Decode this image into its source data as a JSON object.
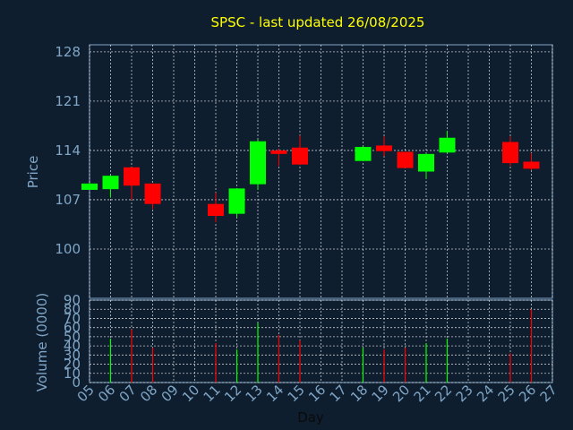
{
  "chart_data": [
    {
      "type": "candlestick",
      "title": "SPSC - last updated 26/08/2025",
      "xlabel": "",
      "ylabel": "Price",
      "ylim": [
        93,
        129
      ],
      "yticks": [
        100,
        107,
        114,
        121,
        128
      ],
      "grid": true,
      "colors": {
        "up": "#00ff00",
        "down": "#ff0000",
        "title": "#ffff00",
        "axis": "#7fa6c6",
        "background": "#0f1e2f"
      },
      "candles": [
        {
          "day": "05",
          "open": 108.4,
          "high": 109.4,
          "low": 108.4,
          "close": 109.3
        },
        {
          "day": "06",
          "open": 108.5,
          "high": 110.5,
          "low": 107.3,
          "close": 110.4
        },
        {
          "day": "07",
          "open": 111.6,
          "high": 111.6,
          "low": 107.0,
          "close": 109.0
        },
        {
          "day": "08",
          "open": 109.3,
          "high": 109.3,
          "low": 105.7,
          "close": 106.4
        },
        {
          "day": "11",
          "open": 106.4,
          "high": 108.0,
          "low": 103.8,
          "close": 104.7
        },
        {
          "day": "12",
          "open": 105.0,
          "high": 108.6,
          "low": 104.5,
          "close": 108.6
        },
        {
          "day": "13",
          "open": 109.2,
          "high": 115.5,
          "low": 108.4,
          "close": 115.3
        },
        {
          "day": "14",
          "open": 114.0,
          "high": 114.2,
          "low": 111.8,
          "close": 113.5
        },
        {
          "day": "15",
          "open": 114.4,
          "high": 116.1,
          "low": 111.9,
          "close": 112.0
        },
        {
          "day": "18",
          "open": 112.5,
          "high": 114.6,
          "low": 112.5,
          "close": 114.5
        },
        {
          "day": "19",
          "open": 114.7,
          "high": 116.0,
          "low": 113.2,
          "close": 113.9
        },
        {
          "day": "20",
          "open": 113.8,
          "high": 113.8,
          "low": 111.5,
          "close": 111.5
        },
        {
          "day": "21",
          "open": 111.0,
          "high": 113.6,
          "low": 110.0,
          "close": 113.5
        },
        {
          "day": "22",
          "open": 113.7,
          "high": 116.8,
          "low": 113.6,
          "close": 115.8
        },
        {
          "day": "25",
          "open": 115.2,
          "high": 116.0,
          "low": 111.8,
          "close": 112.2
        },
        {
          "day": "26",
          "open": 112.4,
          "high": 113.6,
          "low": 111.2,
          "close": 111.4
        }
      ]
    },
    {
      "type": "bar",
      "xlabel": "Day",
      "ylabel": "Volume (0000)",
      "ylim": [
        0,
        90
      ],
      "yticks": [
        0,
        10,
        20,
        30,
        40,
        50,
        60,
        70,
        80,
        90
      ],
      "grid": true,
      "categories": [
        "05",
        "06",
        "07",
        "08",
        "09",
        "10",
        "11",
        "12",
        "13",
        "14",
        "15",
        "16",
        "17",
        "18",
        "19",
        "20",
        "21",
        "22",
        "23",
        "24",
        "25",
        "26",
        "27"
      ],
      "bars": [
        {
          "day": "06",
          "value": 48,
          "direction": "up"
        },
        {
          "day": "07",
          "value": 58,
          "direction": "down"
        },
        {
          "day": "08",
          "value": 38,
          "direction": "down"
        },
        {
          "day": "11",
          "value": 43,
          "direction": "down"
        },
        {
          "day": "12",
          "value": 36,
          "direction": "up"
        },
        {
          "day": "13",
          "value": 65,
          "direction": "up"
        },
        {
          "day": "14",
          "value": 52,
          "direction": "down"
        },
        {
          "day": "15",
          "value": 46,
          "direction": "down"
        },
        {
          "day": "18",
          "value": 38,
          "direction": "up"
        },
        {
          "day": "19",
          "value": 36,
          "direction": "down"
        },
        {
          "day": "20",
          "value": 38,
          "direction": "down"
        },
        {
          "day": "21",
          "value": 43,
          "direction": "up"
        },
        {
          "day": "22",
          "value": 48,
          "direction": "up"
        },
        {
          "day": "25",
          "value": 32,
          "direction": "down"
        },
        {
          "day": "26",
          "value": 80,
          "direction": "down"
        }
      ]
    }
  ]
}
